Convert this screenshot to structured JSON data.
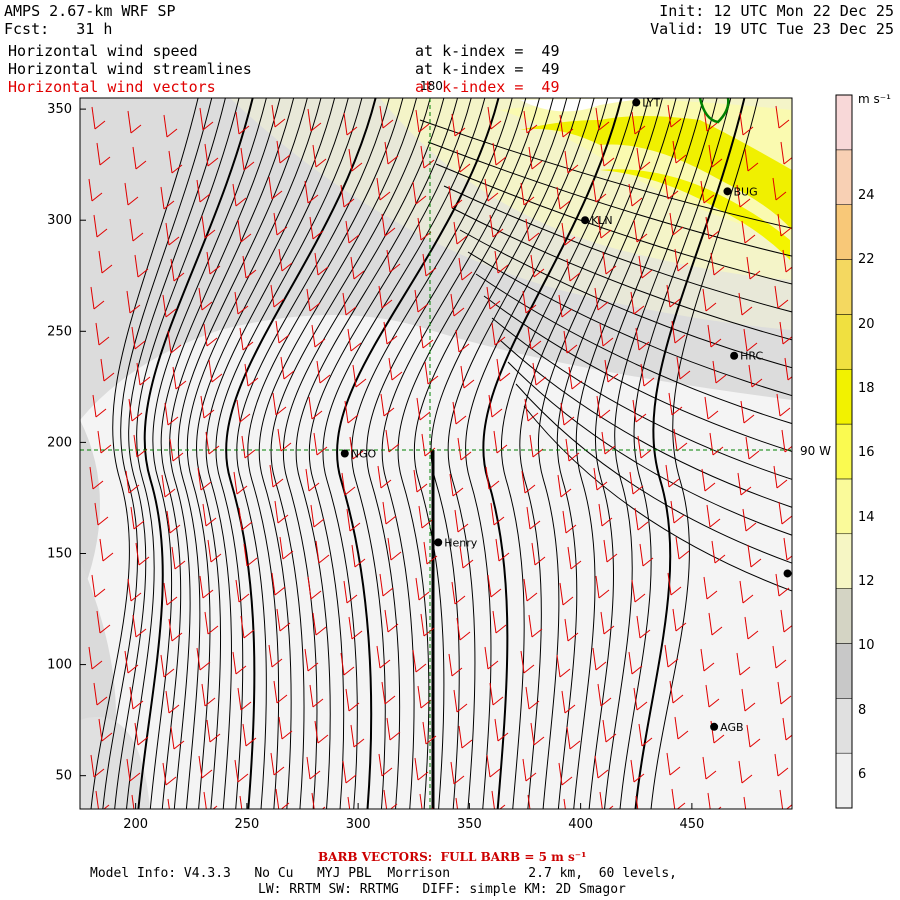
{
  "header": {
    "model": "AMPS 2.67-km WRF SP",
    "forecast": "Fcst:   31 h",
    "init": "Init: 12 UTC Mon 22 Dec 25",
    "valid": "Valid: 19 UTC Tue 23 Dec 25",
    "fields": [
      {
        "name": "Horizontal wind speed",
        "level": "at k-index =  49",
        "color": "#000000"
      },
      {
        "name": "Horizontal wind streamlines",
        "level": "at k-index =  49",
        "color": "#000000"
      },
      {
        "name": "Horizontal wind vectors",
        "level": "at k-index =  49",
        "color": "#e00000"
      }
    ]
  },
  "map": {
    "meridian_label": "180",
    "parallel_label": "90 W",
    "x_ticks": [
      "200",
      "250",
      "300",
      "350",
      "400",
      "450"
    ],
    "y_ticks": [
      "50",
      "100",
      "150",
      "200",
      "250",
      "300",
      "350"
    ],
    "xlim": [
      175,
      495
    ],
    "ylim": [
      35,
      355
    ],
    "stations": [
      {
        "label": "LYT",
        "x": 425,
        "y": 353
      },
      {
        "label": "BUG",
        "x": 466,
        "y": 313
      },
      {
        "label": "KLN",
        "x": 402,
        "y": 300
      },
      {
        "label": "HRC",
        "x": 469,
        "y": 239
      },
      {
        "label": "NGO",
        "x": 294,
        "y": 195
      },
      {
        "label": "Henry",
        "x": 336,
        "y": 155
      },
      {
        "label": "",
        "x": 493,
        "y": 141
      },
      {
        "label": "AGB",
        "x": 460,
        "y": 72
      }
    ],
    "colors": {
      "guide_line": "#008000",
      "vectors": "#e00000",
      "streamlines": "#000000"
    }
  },
  "colorbar": {
    "unit": "m s⁻¹",
    "labels": [
      "24",
      "22",
      "20",
      "18",
      "16",
      "14",
      "12",
      "10",
      "8",
      "6"
    ],
    "bands": [
      "#f0f0f0",
      "#e0e0e0",
      "#c8c8c8",
      "#d4d4c4",
      "#f6f6c4",
      "#fafa9a",
      "#fafa50",
      "#f2f200",
      "#f0e040",
      "#f4d860",
      "#f8c878",
      "#f8d0b4",
      "#f8d8d8"
    ]
  },
  "footer": {
    "barb": "BARB VECTORS:  FULL BARB = 5 m s⁻¹",
    "model_info": "Model Info: V4.3.3   No Cu   MYJ PBL  Morrison          2.7 km,  60 levels,",
    "physics": "LW: RRTM SW: RRTMG   DIFF: simple KM: 2D Smagor"
  }
}
